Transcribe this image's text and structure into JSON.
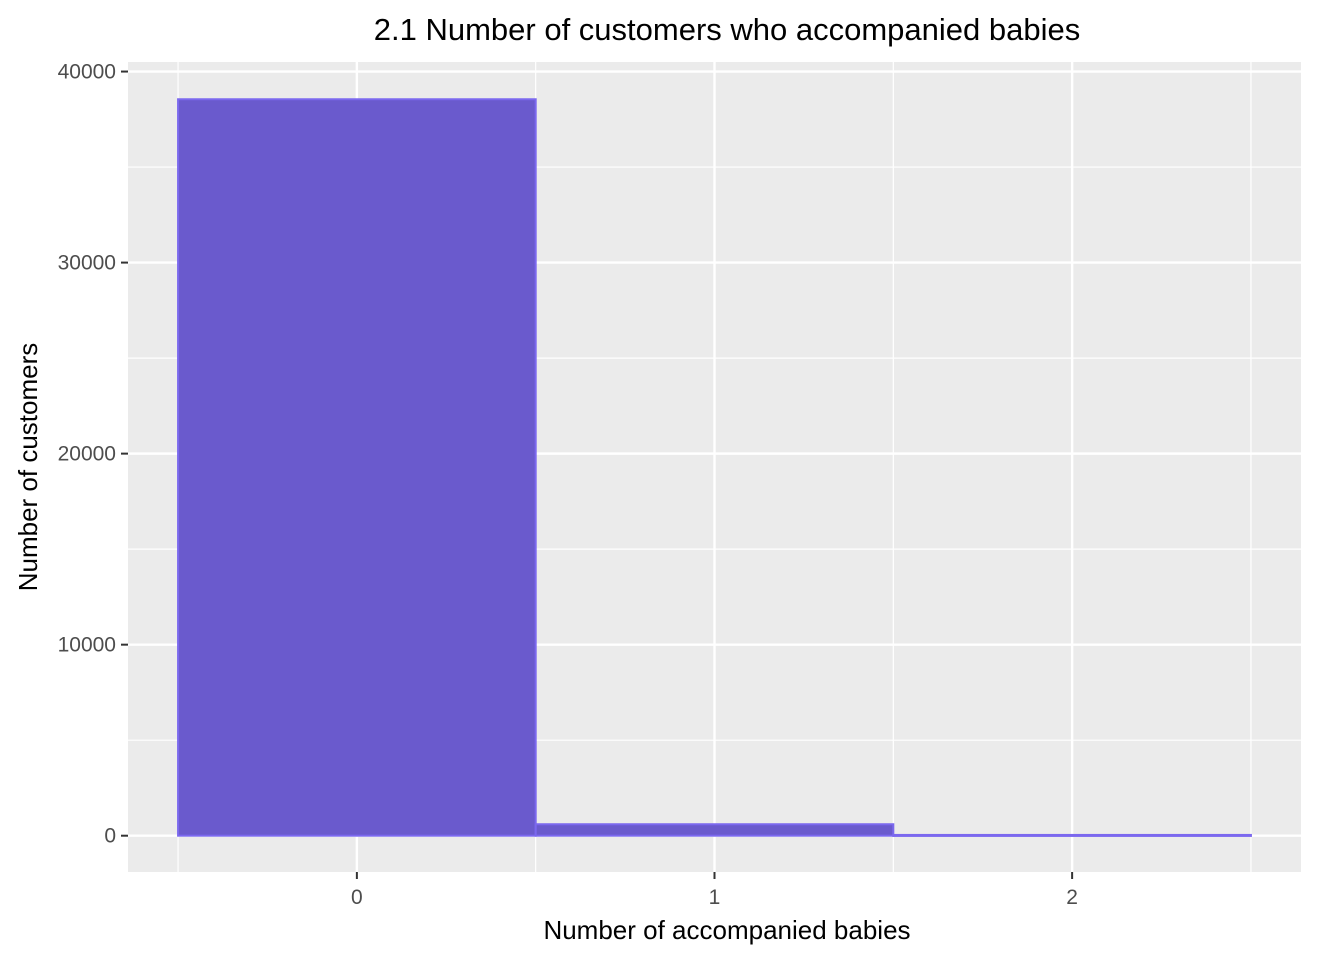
{
  "chart_data": {
    "type": "bar",
    "title": "2.1 Number of customers who accompanied babies",
    "xlabel": "Number of accompanied babies",
    "ylabel": "Number of customers",
    "categories": [
      "0",
      "1",
      "2"
    ],
    "x": [
      0,
      1,
      2
    ],
    "values": [
      38550,
      600,
      40
    ],
    "xlim": [
      -0.64,
      2.64
    ],
    "ylim": [
      -1900,
      40500
    ],
    "yticks": [
      0,
      10000,
      20000,
      30000,
      40000
    ],
    "ytick_labels": [
      "0",
      "10000",
      "20000",
      "30000",
      "40000"
    ],
    "xticks": [
      0,
      1,
      2
    ],
    "xtick_labels": [
      "0",
      "1",
      "2"
    ],
    "grid": true,
    "colors": {
      "bar_fill": "#6a5acd",
      "bar_stroke": "#7b68ee",
      "panel_background": "#ebebeb",
      "grid_line": "#ffffff",
      "tick_text": "#4d4d4d",
      "tick_mark": "#333333"
    }
  }
}
